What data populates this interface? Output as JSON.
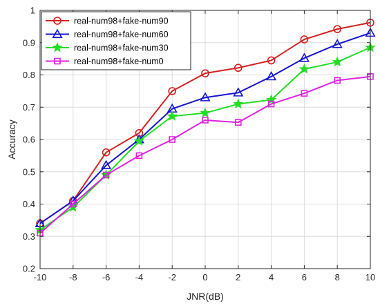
{
  "chart_data": {
    "type": "line",
    "xlabel": "JNR(dB)",
    "ylabel": "Accuracy",
    "x": [
      -10,
      -8,
      -6,
      -4,
      -2,
      0,
      2,
      4,
      6,
      8,
      10
    ],
    "xlim": [
      -10,
      10
    ],
    "ylim": [
      0.2,
      1.0
    ],
    "x_ticks": [
      "-10",
      "-8",
      "-6",
      "-4",
      "-2",
      "0",
      "2",
      "4",
      "6",
      "8",
      "10"
    ],
    "y_ticks": [
      "0.2",
      "0.3",
      "0.4",
      "0.5",
      "0.6",
      "0.7",
      "0.8",
      "0.9",
      "1"
    ],
    "grid": true,
    "legend_position": "top-left",
    "series": [
      {
        "name": "real-num98+fake-num90",
        "color": "#d42020",
        "marker": "circle",
        "values": [
          0.34,
          0.41,
          0.56,
          0.62,
          0.75,
          0.805,
          0.822,
          0.845,
          0.91,
          0.942,
          0.962
        ]
      },
      {
        "name": "real-num98+fake-num60",
        "color": "#1414d0",
        "marker": "triangle",
        "values": [
          0.34,
          0.41,
          0.52,
          0.6,
          0.695,
          0.73,
          0.745,
          0.795,
          0.852,
          0.895,
          0.93
        ]
      },
      {
        "name": "real-num98+fake-num30",
        "color": "#22dd22",
        "marker": "star",
        "values": [
          0.32,
          0.39,
          0.49,
          0.595,
          0.672,
          0.682,
          0.71,
          0.723,
          0.818,
          0.84,
          0.885
        ]
      },
      {
        "name": "real-num98+fake-num0",
        "color": "#e020e0",
        "marker": "square",
        "values": [
          0.31,
          0.4,
          0.49,
          0.55,
          0.6,
          0.66,
          0.653,
          0.71,
          0.743,
          0.783,
          0.795
        ]
      }
    ]
  }
}
